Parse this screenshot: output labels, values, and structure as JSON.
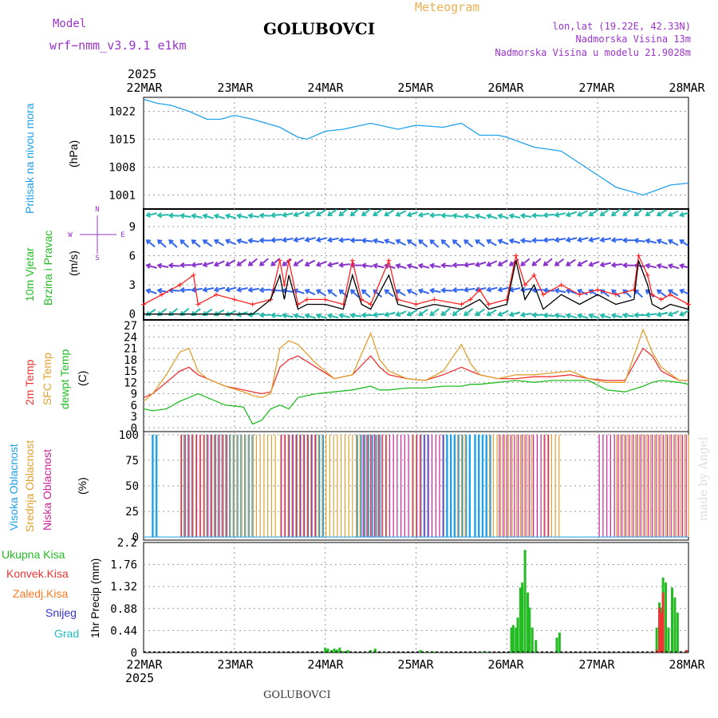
{
  "header": {
    "model_label": "Model",
    "model_name": "wrf−nmm_v3.9.1 e1km",
    "station": "GOLUBOVCI",
    "product": "Meteogram",
    "coords": "lon,lat (19.22E, 42.33N)",
    "elevation": "Nadmorska Visina 13m",
    "model_elevation": "Nadmorska Visina u modelu 21.9028m",
    "year_top": "2025",
    "year_bottom": "2025",
    "footer_station": "GOLUBOVCI",
    "credit": "made by Angel"
  },
  "colors": {
    "pressure": "#1ea0ea",
    "wind_label": "#22bb22",
    "wind_speed": "#ff2222",
    "wind_gust": "#000000",
    "temp_2m": "#ee3333",
    "temp_sfc": "#e0a030",
    "dewpoint": "#22bb22",
    "cloud_high": "#1ea0ea",
    "cloud_mid": "#e0a030",
    "cloud_low": "#cc2299",
    "precip_total": "#22bb22",
    "precip_conv": "#ee3333",
    "precip_snow": "#3333cc",
    "precip_hail": "#22bbbb",
    "precip_frz": "#ff7722",
    "header_purple": "#9933cc",
    "header_orange": "#e8b050"
  },
  "chart_data": [
    {
      "type": "line",
      "id": "pressure",
      "ylabel_1": "Pritisak na nivou mora",
      "ylabel_2": "(hPa)",
      "x_labels": [
        "22MAR",
        "23MAR",
        "24MAR",
        "25MAR",
        "26MAR",
        "27MAR",
        "28MAR"
      ],
      "yticks": [
        1001,
        1008,
        1015,
        1022
      ],
      "ylim": [
        997.5,
        1025.5
      ],
      "x": [
        0,
        0.15,
        0.3,
        0.5,
        0.7,
        0.85,
        1.0,
        1.2,
        1.5,
        1.7,
        1.8,
        2.0,
        2.2,
        2.5,
        2.8,
        3.0,
        3.3,
        3.5,
        3.7,
        3.9,
        4.0,
        4.3,
        4.6,
        4.8,
        5.0,
        5.2,
        5.5,
        5.8,
        6.0
      ],
      "series": [
        {
          "values": [
            1025,
            1024,
            1023.5,
            1022,
            1020,
            1020,
            1021,
            1020,
            1018,
            1015.5,
            1015,
            1017,
            1017.5,
            1019,
            1017.5,
            1018.5,
            1018,
            1019,
            1016,
            1016,
            1015.5,
            1013,
            1012,
            1009,
            1006,
            1003,
            1001,
            1003.5,
            1004
          ]
        }
      ]
    },
    {
      "type": "line",
      "id": "wind",
      "ylabel_1": "10m Vjetar",
      "ylabel_2": "Brzina i Pravac",
      "ylabel_3": "(m/s)",
      "compass": {
        "n": "N",
        "w": "W",
        "e": "E",
        "s": "S"
      },
      "yticks": [
        0,
        3,
        6,
        9
      ],
      "ylim": [
        -0.6,
        10.8
      ],
      "x": [
        0,
        0.2,
        0.4,
        0.55,
        0.6,
        0.8,
        1.0,
        1.2,
        1.4,
        1.5,
        1.55,
        1.6,
        1.7,
        1.8,
        2.0,
        2.2,
        2.3,
        2.4,
        2.5,
        2.7,
        2.8,
        3.0,
        3.2,
        3.5,
        3.6,
        3.7,
        3.8,
        4.0,
        4.1,
        4.2,
        4.3,
        4.4,
        4.6,
        4.8,
        5.0,
        5.2,
        5.4,
        5.45,
        5.55,
        5.6,
        5.7,
        5.8,
        6.0
      ],
      "series": [
        {
          "name_key": "speed",
          "values": [
            1,
            2,
            3,
            4,
            1,
            2,
            1.5,
            1,
            1.5,
            5.5,
            3,
            5.5,
            1,
            1.5,
            1.5,
            1,
            5.5,
            1.5,
            1,
            5.5,
            1.5,
            1,
            1.5,
            1,
            1.5,
            2.5,
            1,
            1.5,
            6,
            3,
            4,
            2,
            3,
            2,
            2.5,
            2,
            2.5,
            6,
            4,
            2,
            1.5,
            2,
            1
          ]
        },
        {
          "name_key": "gust",
          "values": [
            0,
            0,
            0,
            0,
            0,
            0,
            0,
            0,
            1.5,
            4,
            1.5,
            4,
            0.5,
            1,
            1,
            0.5,
            4,
            1,
            0.5,
            4,
            1,
            0.5,
            1,
            0.5,
            1,
            1.5,
            0.5,
            1,
            5.5,
            1.5,
            3,
            0.5,
            2,
            1,
            2,
            1,
            1.5,
            5.5,
            3,
            1,
            0.5,
            1,
            0.5
          ]
        }
      ]
    },
    {
      "type": "line",
      "id": "temperature",
      "ylabel_1": "2m Temp",
      "ylabel_2": "SFC Temp",
      "ylabel_3": "dewpt Temp",
      "ylabel_4": "(C)",
      "yticks": [
        0,
        3,
        6,
        9,
        12,
        15,
        18,
        21,
        24,
        27
      ],
      "ylim": [
        -1,
        28.5
      ],
      "x": [
        0,
        0.1,
        0.25,
        0.4,
        0.5,
        0.6,
        0.7,
        0.9,
        1.1,
        1.2,
        1.3,
        1.4,
        1.5,
        1.6,
        1.7,
        1.9,
        2.1,
        2.3,
        2.5,
        2.6,
        2.7,
        2.9,
        3.1,
        3.3,
        3.5,
        3.6,
        3.7,
        3.9,
        4.1,
        4.3,
        4.5,
        4.7,
        4.9,
        5.1,
        5.3,
        5.5,
        5.6,
        5.7,
        5.9,
        6.0
      ],
      "series": [
        {
          "name_key": "t2m",
          "values": [
            8,
            9,
            12,
            15,
            16,
            14,
            13,
            11,
            10,
            9.5,
            9,
            9.5,
            16,
            18,
            19,
            16,
            13,
            14,
            19,
            16,
            14,
            13,
            12.5,
            14,
            16,
            15,
            14,
            13,
            13,
            13.5,
            13.5,
            14,
            13,
            12.5,
            12.5,
            21,
            19,
            15,
            12.5,
            12.5
          ]
        },
        {
          "name_key": "tsfc",
          "values": [
            7,
            9,
            14,
            20,
            21,
            15,
            13,
            11,
            9.5,
            8.5,
            8,
            9,
            21,
            23,
            22,
            17,
            13,
            14,
            25,
            18,
            15,
            13,
            12.5,
            15,
            22,
            17,
            14,
            13,
            14,
            14,
            14.5,
            15,
            13,
            12,
            12,
            26,
            20,
            16,
            12.5,
            12.5
          ]
        },
        {
          "name_key": "dewpt",
          "values": [
            5,
            4.5,
            5,
            7,
            8,
            9,
            8,
            6,
            5.5,
            1,
            2,
            5,
            6,
            5,
            8,
            9,
            9.5,
            10,
            11,
            10,
            10,
            10.5,
            10.5,
            11,
            11,
            11.5,
            11.5,
            12,
            12.5,
            12,
            12.5,
            12.5,
            12.5,
            10,
            9.5,
            11,
            12,
            12.5,
            12,
            11.5
          ]
        }
      ]
    },
    {
      "type": "bar",
      "id": "clouds",
      "ylabel_1": "Visoka Oblacnost",
      "ylabel_2": "Srednja Oblacnost",
      "ylabel_3": "Niska Oblacnost",
      "ylabel_4": "(%)",
      "yticks": [
        0,
        25,
        50,
        75,
        100
      ],
      "ylim": [
        -3,
        103
      ],
      "series": [
        {
          "name_key": "high",
          "intervals": [
            [
              0.1,
              0.15
            ],
            [
              0.45,
              0.55
            ],
            [
              0.7,
              1.2
            ],
            [
              1.6,
              2.0
            ],
            [
              2.35,
              2.6
            ],
            [
              3.05,
              3.15
            ],
            [
              3.3,
              3.6
            ],
            [
              3.65,
              3.85
            ]
          ]
        },
        {
          "name_key": "mid",
          "intervals": [
            [
              0.4,
              1.45
            ],
            [
              1.5,
              2.7
            ],
            [
              2.95,
              3.05
            ],
            [
              3.45,
              3.55
            ],
            [
              3.8,
              4.05
            ],
            [
              4.1,
              4.3
            ],
            [
              4.4,
              4.6
            ],
            [
              5.2,
              6.0
            ]
          ]
        },
        {
          "name_key": "low",
          "intervals": [
            [
              0.4,
              0.9
            ],
            [
              1.5,
              1.9
            ],
            [
              2.4,
              2.9
            ],
            [
              2.95,
              3.3
            ],
            [
              3.9,
              4.45
            ],
            [
              5.0,
              6.0
            ]
          ]
        }
      ]
    },
    {
      "type": "bar",
      "id": "precip",
      "ylabel_1": "Ukupna Kisa",
      "ylabel_2": "Konvek.Kisa",
      "ylabel_3": "Zaledj.Kisa",
      "ylabel_4": "Snijeg",
      "ylabel_5": "Grad",
      "ylabel_6": "1hr Precip (mm)",
      "yticks": [
        "0",
        "0.44",
        "0.88",
        "1.32",
        "1.76",
        "2.2"
      ],
      "ylim": [
        0,
        2.2
      ],
      "x_labels": [
        "22MAR",
        "23MAR",
        "24MAR",
        "25MAR",
        "26MAR",
        "27MAR",
        "28MAR"
      ],
      "x": [
        2.0,
        2.03,
        2.07,
        2.1,
        2.13,
        2.16,
        2.2,
        2.25,
        2.5,
        2.55,
        2.65,
        3.05,
        3.12,
        3.2,
        3.7,
        3.75,
        3.8,
        4.05,
        4.07,
        4.1,
        4.12,
        4.15,
        4.17,
        4.2,
        4.23,
        4.25,
        4.28,
        4.32,
        4.55,
        4.58,
        5.65,
        5.68,
        5.7,
        5.72,
        5.75,
        5.78,
        5.82,
        5.85,
        5.88,
        5.98
      ],
      "series": [
        {
          "name_key": "total",
          "values": [
            0.1,
            0.08,
            0.05,
            0.08,
            0.06,
            0.1,
            0.03,
            0.05,
            0.05,
            0.08,
            0.02,
            0.05,
            0.03,
            0.02,
            0.02,
            0.03,
            0.02,
            0.5,
            0.55,
            0.5,
            0.7,
            1.3,
            1.4,
            2.05,
            1.2,
            0.9,
            0.5,
            0.25,
            0.3,
            0.4,
            0.5,
            1.0,
            0.9,
            1.5,
            1.4,
            0.5,
            1.3,
            1.1,
            0.8,
            0.05
          ]
        },
        {
          "name_key": "conv",
          "values": [
            0,
            0,
            0,
            0,
            0,
            0,
            0,
            0,
            0,
            0,
            0,
            0,
            0,
            0,
            0,
            0,
            0,
            0,
            0,
            0,
            0,
            0,
            0,
            0,
            0,
            0,
            0,
            0,
            0,
            0,
            0.05,
            0.9,
            0.8,
            1.2,
            0,
            0,
            0,
            0,
            0,
            0.05
          ]
        }
      ]
    }
  ]
}
